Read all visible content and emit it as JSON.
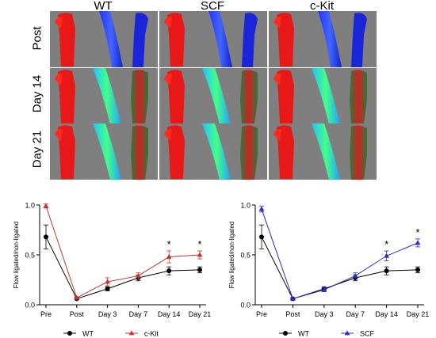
{
  "image_panel": {
    "columns": [
      "WT",
      "SCF",
      "c-Kit"
    ],
    "rows": [
      "Post",
      "Day 14",
      "Day 21"
    ]
  },
  "chart_data": [
    {
      "type": "line",
      "ylabel": "Flow ligated/non-ligated",
      "xlabel": "",
      "ylim": [
        0.0,
        1.0
      ],
      "yticks": [
        "0.0",
        "0.5",
        "1.0"
      ],
      "categories": [
        "Pre",
        "Post",
        "Day 3",
        "Day 7",
        "Day 14",
        "Day 21"
      ],
      "series": [
        {
          "name": "WT",
          "color": "#000000",
          "marker": "circle",
          "values": [
            0.68,
            0.06,
            0.16,
            0.27,
            0.34,
            0.35
          ],
          "errors": [
            0.12,
            0.01,
            0.02,
            0.03,
            0.04,
            0.03
          ]
        },
        {
          "name": "c-Kit",
          "color": "#c0392b",
          "marker": "triangle-up",
          "values": [
            0.99,
            0.07,
            0.23,
            0.29,
            0.48,
            0.5
          ],
          "errors": [
            0.02,
            0.01,
            0.04,
            0.03,
            0.06,
            0.04
          ]
        }
      ],
      "annotations": [
        {
          "x": "Day 14",
          "text": "*"
        },
        {
          "x": "Day 21",
          "text": "*"
        }
      ],
      "legend": "bottom"
    },
    {
      "type": "line",
      "ylabel": "Flow ligated/non-ligated",
      "xlabel": "",
      "ylim": [
        0.0,
        1.0
      ],
      "yticks": [
        "0.0",
        "0.5",
        "1.0"
      ],
      "categories": [
        "Pre",
        "Post",
        "Day 3",
        "Day 7",
        "Day 14",
        "Day 21"
      ],
      "series": [
        {
          "name": "WT",
          "color": "#000000",
          "marker": "circle",
          "values": [
            0.68,
            0.06,
            0.16,
            0.27,
            0.34,
            0.35
          ],
          "errors": [
            0.12,
            0.01,
            0.02,
            0.03,
            0.04,
            0.03
          ]
        },
        {
          "name": "SCF",
          "color": "#2c2cc8",
          "marker": "triangle-up",
          "values": [
            0.96,
            0.06,
            0.15,
            0.29,
            0.49,
            0.62
          ],
          "errors": [
            0.03,
            0.01,
            0.02,
            0.03,
            0.05,
            0.04
          ]
        }
      ],
      "annotations": [
        {
          "x": "Day 14",
          "text": "*"
        },
        {
          "x": "Day 21",
          "text": "*"
        }
      ],
      "legend": "bottom"
    }
  ]
}
